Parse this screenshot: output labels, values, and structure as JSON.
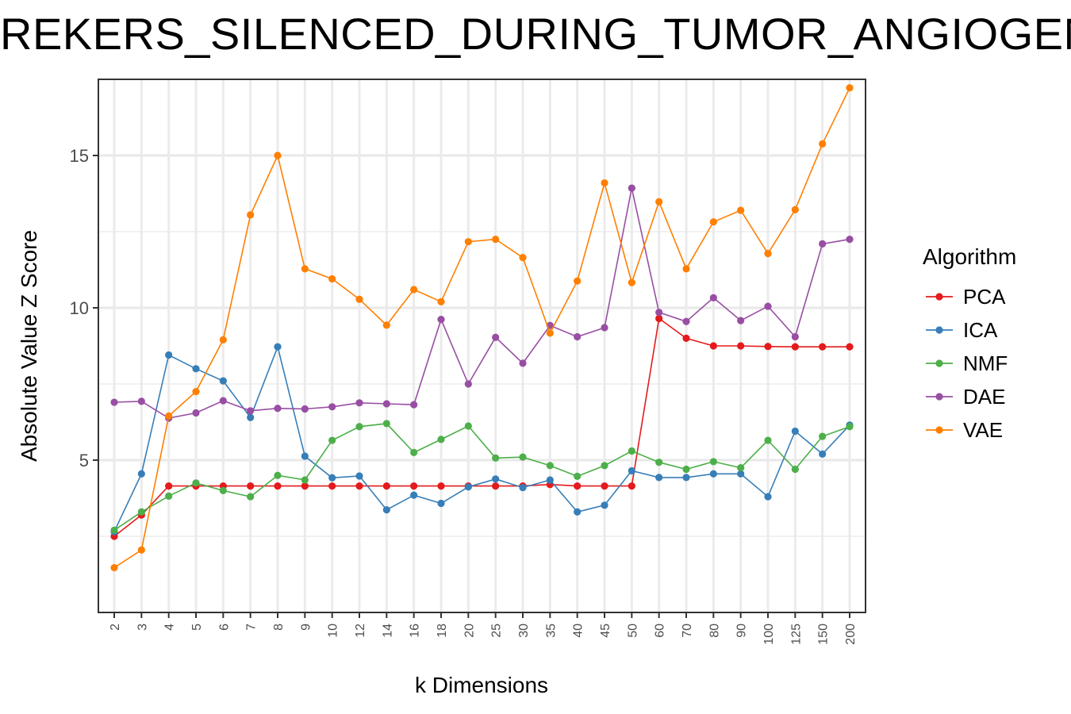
{
  "chart_data": {
    "type": "line",
    "title": "REKERS_SILENCED_DURING_TUMOR_ANGIOGENESIS",
    "xlabel": "k Dimensions",
    "ylabel": "Absolute Value Z Score",
    "categories": [
      "2",
      "3",
      "4",
      "5",
      "6",
      "7",
      "8",
      "9",
      "10",
      "12",
      "14",
      "16",
      "18",
      "20",
      "25",
      "30",
      "35",
      "40",
      "45",
      "50",
      "60",
      "70",
      "80",
      "90",
      "100",
      "125",
      "150",
      "200"
    ],
    "ylim": [
      0,
      17.5
    ],
    "yticks": [
      5,
      10,
      15
    ],
    "grid": true,
    "legend_title": "Algorithm",
    "legend_position": "right",
    "series": [
      {
        "name": "PCA",
        "color": "#e41a1c",
        "values": [
          2.5,
          3.2,
          4.15,
          4.15,
          4.15,
          4.15,
          4.15,
          4.15,
          4.15,
          4.15,
          4.15,
          4.15,
          4.15,
          4.15,
          4.15,
          4.15,
          4.2,
          4.15,
          4.15,
          4.15,
          9.65,
          9.0,
          8.75,
          8.75,
          8.73,
          8.72,
          8.72,
          8.72
        ]
      },
      {
        "name": "ICA",
        "color": "#377eb8",
        "values": [
          2.65,
          4.55,
          8.45,
          8.0,
          7.6,
          6.4,
          8.72,
          5.13,
          4.42,
          4.48,
          3.37,
          3.85,
          3.58,
          4.12,
          4.38,
          4.1,
          4.35,
          3.3,
          3.52,
          4.65,
          4.43,
          4.43,
          4.55,
          4.55,
          3.8,
          5.95,
          5.2,
          6.15
        ]
      },
      {
        "name": "NMF",
        "color": "#4daf4a",
        "values": [
          2.7,
          3.3,
          3.82,
          4.25,
          4.0,
          3.8,
          4.5,
          4.35,
          5.65,
          6.1,
          6.2,
          5.25,
          5.68,
          6.12,
          5.07,
          5.1,
          4.82,
          4.47,
          4.82,
          5.3,
          4.93,
          4.7,
          4.95,
          4.75,
          5.65,
          4.7,
          5.78,
          6.1
        ]
      },
      {
        "name": "DAE",
        "color": "#984ea3",
        "values": [
          6.9,
          6.93,
          6.38,
          6.55,
          6.95,
          6.62,
          6.7,
          6.68,
          6.75,
          6.88,
          6.85,
          6.82,
          9.62,
          7.5,
          9.03,
          8.18,
          9.42,
          9.05,
          9.35,
          13.93,
          9.85,
          9.55,
          10.33,
          9.58,
          10.05,
          9.05,
          12.1,
          12.25
        ]
      },
      {
        "name": "VAE",
        "color": "#ff7f00",
        "values": [
          1.47,
          2.05,
          6.45,
          7.25,
          8.95,
          13.05,
          15.0,
          11.28,
          10.95,
          10.28,
          9.43,
          10.6,
          10.2,
          12.17,
          12.25,
          11.65,
          9.17,
          10.88,
          14.1,
          10.83,
          13.48,
          11.28,
          12.82,
          13.2,
          11.78,
          13.22,
          15.38,
          17.22
        ]
      }
    ]
  }
}
